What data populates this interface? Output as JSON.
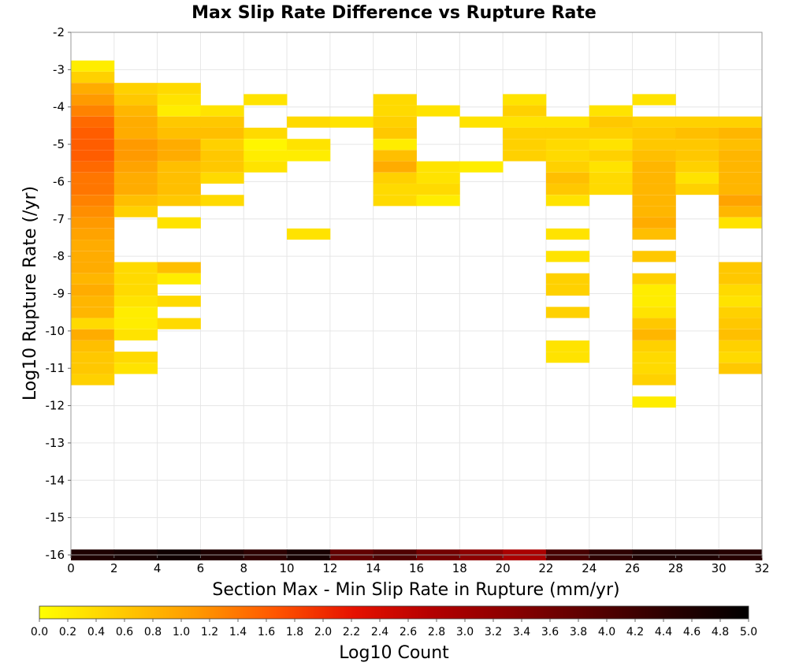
{
  "chart_data": {
    "type": "heatmap",
    "title": "Max Slip Rate Difference vs Rupture Rate",
    "xlabel": "Section Max - Min Slip Rate in Rupture (mm/yr)",
    "ylabel": "Log10 Rupture Rate (/yr)",
    "xlim": [
      0,
      32
    ],
    "ylim": [
      -16,
      -2
    ],
    "x_ticks": [
      "0",
      "2",
      "4",
      "6",
      "8",
      "10",
      "12",
      "14",
      "16",
      "18",
      "20",
      "22",
      "24",
      "26",
      "28",
      "30",
      "32"
    ],
    "y_ticks": [
      "-2",
      "-3",
      "-4",
      "-5",
      "-6",
      "-7",
      "-8",
      "-9",
      "-10",
      "-11",
      "-12",
      "-13",
      "-14",
      "-15",
      "-16"
    ],
    "x_bin_width": 2,
    "y_bin_height": 0.29,
    "grid": true,
    "colorbar": {
      "label": "Log10 Count",
      "range": [
        0.0,
        5.0
      ],
      "ticks": [
        "0.0",
        "0.2",
        "0.4",
        "0.6",
        "0.8",
        "1.0",
        "1.2",
        "1.4",
        "1.6",
        "1.8",
        "2.0",
        "2.2",
        "2.4",
        "2.6",
        "2.8",
        "3.0",
        "3.2",
        "3.4",
        "3.6",
        "3.8",
        "4.0",
        "4.2",
        "4.4",
        "4.6",
        "4.8",
        "5.0"
      ],
      "colors": [
        "#ffff00",
        "#ffcc00",
        "#ff9900",
        "#ff5500",
        "#e61100",
        "#b30000",
        "#8a0000",
        "#5a0000",
        "#2a0000",
        "#000000"
      ]
    },
    "columns": [
      {
        "x": 0,
        "cells": [
          [
            -2.9,
            0.2
          ],
          [
            -3.2,
            0.5
          ],
          [
            -3.5,
            0.9
          ],
          [
            -3.8,
            1.1
          ],
          [
            -4.1,
            1.3
          ],
          [
            -4.4,
            1.5
          ],
          [
            -4.7,
            1.6
          ],
          [
            -5.0,
            1.6
          ],
          [
            -5.3,
            1.6
          ],
          [
            -5.6,
            1.5
          ],
          [
            -5.9,
            1.4
          ],
          [
            -6.2,
            1.4
          ],
          [
            -6.5,
            1.3
          ],
          [
            -6.8,
            1.2
          ],
          [
            -7.1,
            1.1
          ],
          [
            -7.4,
            1.0
          ],
          [
            -7.7,
            0.9
          ],
          [
            -8.0,
            0.9
          ],
          [
            -8.3,
            0.9
          ],
          [
            -8.6,
            0.8
          ],
          [
            -8.9,
            0.9
          ],
          [
            -9.2,
            0.8
          ],
          [
            -9.5,
            0.8
          ],
          [
            -9.8,
            0.4
          ],
          [
            -10.1,
            0.9
          ],
          [
            -10.4,
            0.7
          ],
          [
            -10.7,
            0.6
          ],
          [
            -11.0,
            0.6
          ],
          [
            -11.3,
            0.5
          ]
        ]
      },
      {
        "x": 2,
        "cells": [
          [
            -3.5,
            0.5
          ],
          [
            -3.8,
            0.6
          ],
          [
            -4.1,
            0.8
          ],
          [
            -4.4,
            0.9
          ],
          [
            -4.7,
            0.9
          ],
          [
            -5.0,
            1.1
          ],
          [
            -5.3,
            1.1
          ],
          [
            -5.6,
            1.0
          ],
          [
            -5.9,
            0.9
          ],
          [
            -6.2,
            0.9
          ],
          [
            -6.5,
            0.7
          ],
          [
            -6.8,
            0.5
          ],
          [
            -8.3,
            0.4
          ],
          [
            -8.6,
            0.4
          ],
          [
            -8.9,
            0.4
          ],
          [
            -9.2,
            0.3
          ],
          [
            -9.5,
            0.2
          ],
          [
            -9.8,
            0.2
          ],
          [
            -10.1,
            0.3
          ],
          [
            -10.7,
            0.4
          ],
          [
            -11.0,
            0.3
          ]
        ]
      },
      {
        "x": 4,
        "cells": [
          [
            -3.5,
            0.4
          ],
          [
            -3.8,
            0.3
          ],
          [
            -4.1,
            0.2
          ],
          [
            -4.4,
            0.6
          ],
          [
            -4.7,
            0.7
          ],
          [
            -5.0,
            0.9
          ],
          [
            -5.3,
            0.9
          ],
          [
            -5.6,
            0.7
          ],
          [
            -5.9,
            0.7
          ],
          [
            -6.2,
            0.7
          ],
          [
            -6.5,
            0.6
          ],
          [
            -7.1,
            0.3
          ],
          [
            -8.3,
            0.7
          ],
          [
            -8.6,
            0.2
          ],
          [
            -9.2,
            0.4
          ],
          [
            -9.8,
            0.4
          ]
        ]
      },
      {
        "x": 6,
        "cells": [
          [
            -4.1,
            0.3
          ],
          [
            -4.4,
            0.6
          ],
          [
            -4.7,
            0.7
          ],
          [
            -5.0,
            0.5
          ],
          [
            -5.3,
            0.6
          ],
          [
            -5.6,
            0.6
          ],
          [
            -5.9,
            0.4
          ],
          [
            -6.5,
            0.4
          ]
        ]
      },
      {
        "x": 8,
        "cells": [
          [
            -3.8,
            0.3
          ],
          [
            -4.7,
            0.4
          ],
          [
            -5.0,
            0.1
          ],
          [
            -5.3,
            0.2
          ],
          [
            -5.6,
            0.3
          ]
        ]
      },
      {
        "x": 10,
        "cells": [
          [
            -4.4,
            0.4
          ],
          [
            -5.0,
            0.3
          ],
          [
            -5.3,
            0.2
          ],
          [
            -7.4,
            0.3
          ]
        ]
      },
      {
        "x": 12,
        "cells": [
          [
            -4.4,
            0.3
          ]
        ]
      },
      {
        "x": 14,
        "cells": [
          [
            -3.8,
            0.4
          ],
          [
            -4.1,
            0.4
          ],
          [
            -4.4,
            0.5
          ],
          [
            -4.7,
            0.6
          ],
          [
            -5.0,
            0.2
          ],
          [
            -5.3,
            0.7
          ],
          [
            -5.6,
            0.9
          ],
          [
            -5.9,
            0.5
          ],
          [
            -6.2,
            0.4
          ],
          [
            -6.5,
            0.4
          ]
        ]
      },
      {
        "x": 16,
        "cells": [
          [
            -4.1,
            0.3
          ],
          [
            -5.6,
            0.3
          ],
          [
            -5.9,
            0.3
          ],
          [
            -6.2,
            0.4
          ],
          [
            -6.5,
            0.2
          ]
        ]
      },
      {
        "x": 18,
        "cells": [
          [
            -4.4,
            0.3
          ],
          [
            -5.6,
            0.2
          ]
        ]
      },
      {
        "x": 20,
        "cells": [
          [
            -3.8,
            0.3
          ],
          [
            -4.1,
            0.5
          ],
          [
            -4.4,
            0.3
          ],
          [
            -4.7,
            0.5
          ],
          [
            -5.0,
            0.5
          ],
          [
            -5.3,
            0.5
          ]
        ]
      },
      {
        "x": 22,
        "cells": [
          [
            -4.4,
            0.3
          ],
          [
            -4.7,
            0.5
          ],
          [
            -5.0,
            0.4
          ],
          [
            -5.3,
            0.4
          ],
          [
            -5.6,
            0.5
          ],
          [
            -5.9,
            0.7
          ],
          [
            -6.2,
            0.6
          ],
          [
            -6.5,
            0.3
          ],
          [
            -7.4,
            0.3
          ],
          [
            -8.0,
            0.3
          ],
          [
            -8.6,
            0.5
          ],
          [
            -8.9,
            0.5
          ],
          [
            -9.5,
            0.5
          ],
          [
            -10.4,
            0.3
          ],
          [
            -10.7,
            0.3
          ]
        ]
      },
      {
        "x": 24,
        "cells": [
          [
            -4.1,
            0.3
          ],
          [
            -4.4,
            0.6
          ],
          [
            -4.7,
            0.5
          ],
          [
            -5.0,
            0.3
          ],
          [
            -5.3,
            0.5
          ],
          [
            -5.6,
            0.3
          ],
          [
            -5.9,
            0.4
          ],
          [
            -6.2,
            0.4
          ]
        ]
      },
      {
        "x": 26,
        "cells": [
          [
            -3.8,
            0.3
          ],
          [
            -4.4,
            0.5
          ],
          [
            -4.7,
            0.6
          ],
          [
            -5.0,
            0.6
          ],
          [
            -5.3,
            0.7
          ],
          [
            -5.6,
            0.8
          ],
          [
            -5.9,
            0.8
          ],
          [
            -6.2,
            0.8
          ],
          [
            -6.5,
            0.8
          ],
          [
            -6.8,
            0.8
          ],
          [
            -7.1,
            0.9
          ],
          [
            -7.4,
            0.7
          ],
          [
            -8.0,
            0.6
          ],
          [
            -8.6,
            0.5
          ],
          [
            -8.9,
            0.2
          ],
          [
            -9.2,
            0.2
          ],
          [
            -9.5,
            0.3
          ],
          [
            -9.8,
            0.6
          ],
          [
            -10.1,
            0.8
          ],
          [
            -10.4,
            0.5
          ],
          [
            -10.7,
            0.4
          ],
          [
            -11.0,
            0.4
          ],
          [
            -11.3,
            0.5
          ],
          [
            -11.9,
            0.2
          ]
        ]
      },
      {
        "x": 28,
        "cells": [
          [
            -4.4,
            0.5
          ],
          [
            -4.7,
            0.7
          ],
          [
            -5.0,
            0.6
          ],
          [
            -5.3,
            0.6
          ],
          [
            -5.6,
            0.5
          ],
          [
            -5.9,
            0.3
          ],
          [
            -6.2,
            0.5
          ]
        ]
      },
      {
        "x": 30,
        "cells": [
          [
            -4.4,
            0.5
          ],
          [
            -4.7,
            0.8
          ],
          [
            -5.0,
            0.7
          ],
          [
            -5.3,
            0.8
          ],
          [
            -5.6,
            0.8
          ],
          [
            -5.9,
            0.8
          ],
          [
            -6.2,
            0.8
          ],
          [
            -6.5,
            1.0
          ],
          [
            -6.8,
            0.8
          ],
          [
            -7.1,
            0.3
          ],
          [
            -8.3,
            0.6
          ],
          [
            -8.6,
            0.6
          ],
          [
            -8.9,
            0.4
          ],
          [
            -9.2,
            0.3
          ],
          [
            -9.5,
            0.5
          ],
          [
            -9.8,
            0.6
          ],
          [
            -10.1,
            0.7
          ],
          [
            -10.4,
            0.5
          ],
          [
            -10.7,
            0.4
          ],
          [
            -11.0,
            0.6
          ]
        ]
      }
    ],
    "bottom_row": {
      "y": -16.0,
      "values": [
        4.6,
        4.7,
        4.8,
        4.6,
        4.4,
        4.7,
        3.8,
        4.0,
        3.6,
        3.3,
        2.9,
        4.1,
        4.4,
        4.6,
        4.6,
        4.5
      ]
    }
  }
}
